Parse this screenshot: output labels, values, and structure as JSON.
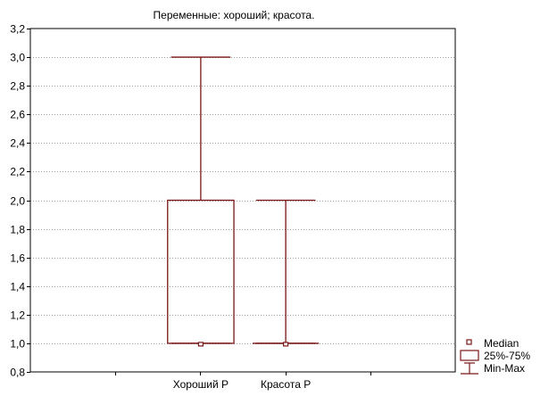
{
  "chart_data": {
    "type": "box",
    "title": "Переменные: хороший; красота.",
    "xlabel": "",
    "ylabel": "",
    "ylim": [
      0.8,
      3.2
    ],
    "yticks": [
      0.8,
      1.0,
      1.2,
      1.4,
      1.6,
      1.8,
      2.0,
      2.2,
      2.4,
      2.6,
      2.8,
      3.0,
      3.2
    ],
    "ytick_labels": [
      "0,8",
      "1,0",
      "1,2",
      "1,4",
      "1,6",
      "1,8",
      "2,0",
      "2,2",
      "2,4",
      "2,6",
      "2,8",
      "3,0",
      "3,2"
    ],
    "grid": true,
    "categories": [
      "Хороший Р",
      "Красота Р"
    ],
    "boxes": [
      {
        "category": "Хороший Р",
        "median": 1.0,
        "q1": 1.0,
        "q3": 2.0,
        "min": 1.0,
        "max": 3.0
      },
      {
        "category": "Красота Р",
        "median": 1.0,
        "q1": 1.0,
        "q3": 1.0,
        "min": 1.0,
        "max": 2.0
      }
    ],
    "legend": {
      "position": "bottom-right",
      "items": [
        {
          "symbol": "median",
          "label": "Median"
        },
        {
          "symbol": "box",
          "label": "25%-75%"
        },
        {
          "symbol": "whisker",
          "label": "Min-Max"
        }
      ]
    },
    "colors": {
      "box": "#7a1616",
      "grid": "#a0a0a0",
      "frame": "#000000"
    }
  }
}
